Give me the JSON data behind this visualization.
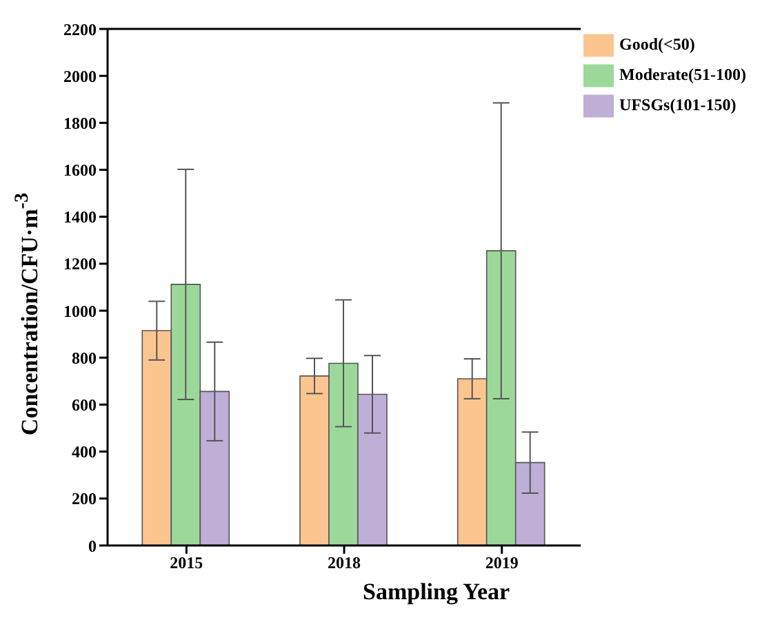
{
  "chart_data": {
    "type": "bar",
    "xlabel": "Sampling Year",
    "ylabel": "Concentration/CFU·m$^{-3}$",
    "categories": [
      "2015",
      "2018",
      "2019"
    ],
    "series": [
      {
        "name": "Good(<50)",
        "color": "#fcc590",
        "values": [
          915,
          722,
          710
        ],
        "errors": [
          125,
          75,
          85
        ]
      },
      {
        "name": "Moderate(51-100)",
        "color": "#9dd89b",
        "values": [
          1112,
          776,
          1255
        ],
        "errors": [
          490,
          270,
          630
        ]
      },
      {
        "name": "UFSGs(101-150)",
        "color": "#bfaed6",
        "values": [
          656,
          644,
          353
        ],
        "errors": [
          210,
          165,
          130
        ]
      }
    ],
    "ylim": [
      0,
      2200
    ],
    "yticks": [
      0,
      200,
      400,
      600,
      800,
      1000,
      1200,
      1400,
      1600,
      1800,
      2000,
      2200
    ],
    "grid": false,
    "legend": "top right"
  }
}
